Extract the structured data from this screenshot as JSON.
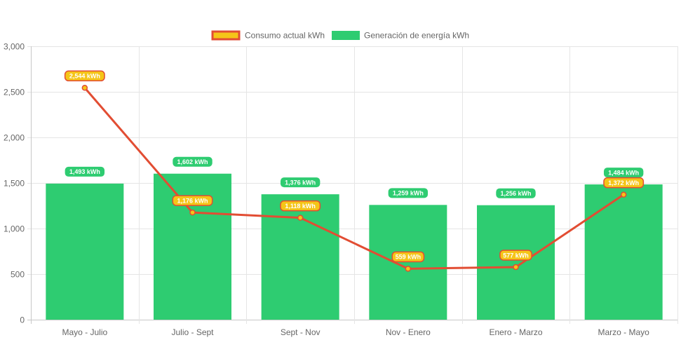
{
  "chart_data": {
    "type": "bar",
    "categories": [
      "Mayo - Julio",
      "Julio - Sept",
      "Sept - Nov",
      "Nov - Enero",
      "Enero - Marzo",
      "Marzo - Mayo"
    ],
    "ylim": [
      0,
      3000
    ],
    "yticks": [
      0,
      500,
      1000,
      1500,
      2000,
      2500,
      3000
    ],
    "ytick_labels": [
      "0",
      "500",
      "1,000",
      "1,500",
      "2,000",
      "2,500",
      "3,000"
    ],
    "grid": true,
    "legend_position": "top-center",
    "series": [
      {
        "name": "Consumo actual kWh",
        "type": "line",
        "color": "#e24d33",
        "fill_color": "#f5c518",
        "values": [
          2544,
          1176,
          1118,
          559,
          577,
          1372
        ],
        "labels": [
          "2,544 kWh",
          "1,176 kWh",
          "1,118 kWh",
          "559 kWh",
          "577 kWh",
          "1,372 kWh"
        ]
      },
      {
        "name": "Generación de energía kWh",
        "type": "bar",
        "color": "#2ecc71",
        "values": [
          1493,
          1602,
          1376,
          1259,
          1256,
          1484
        ],
        "labels": [
          "1,493 kWh",
          "1,602 kWh",
          "1,376 kWh",
          "1,259 kWh",
          "1,256 kWh",
          "1,484 kWh"
        ]
      }
    ]
  }
}
